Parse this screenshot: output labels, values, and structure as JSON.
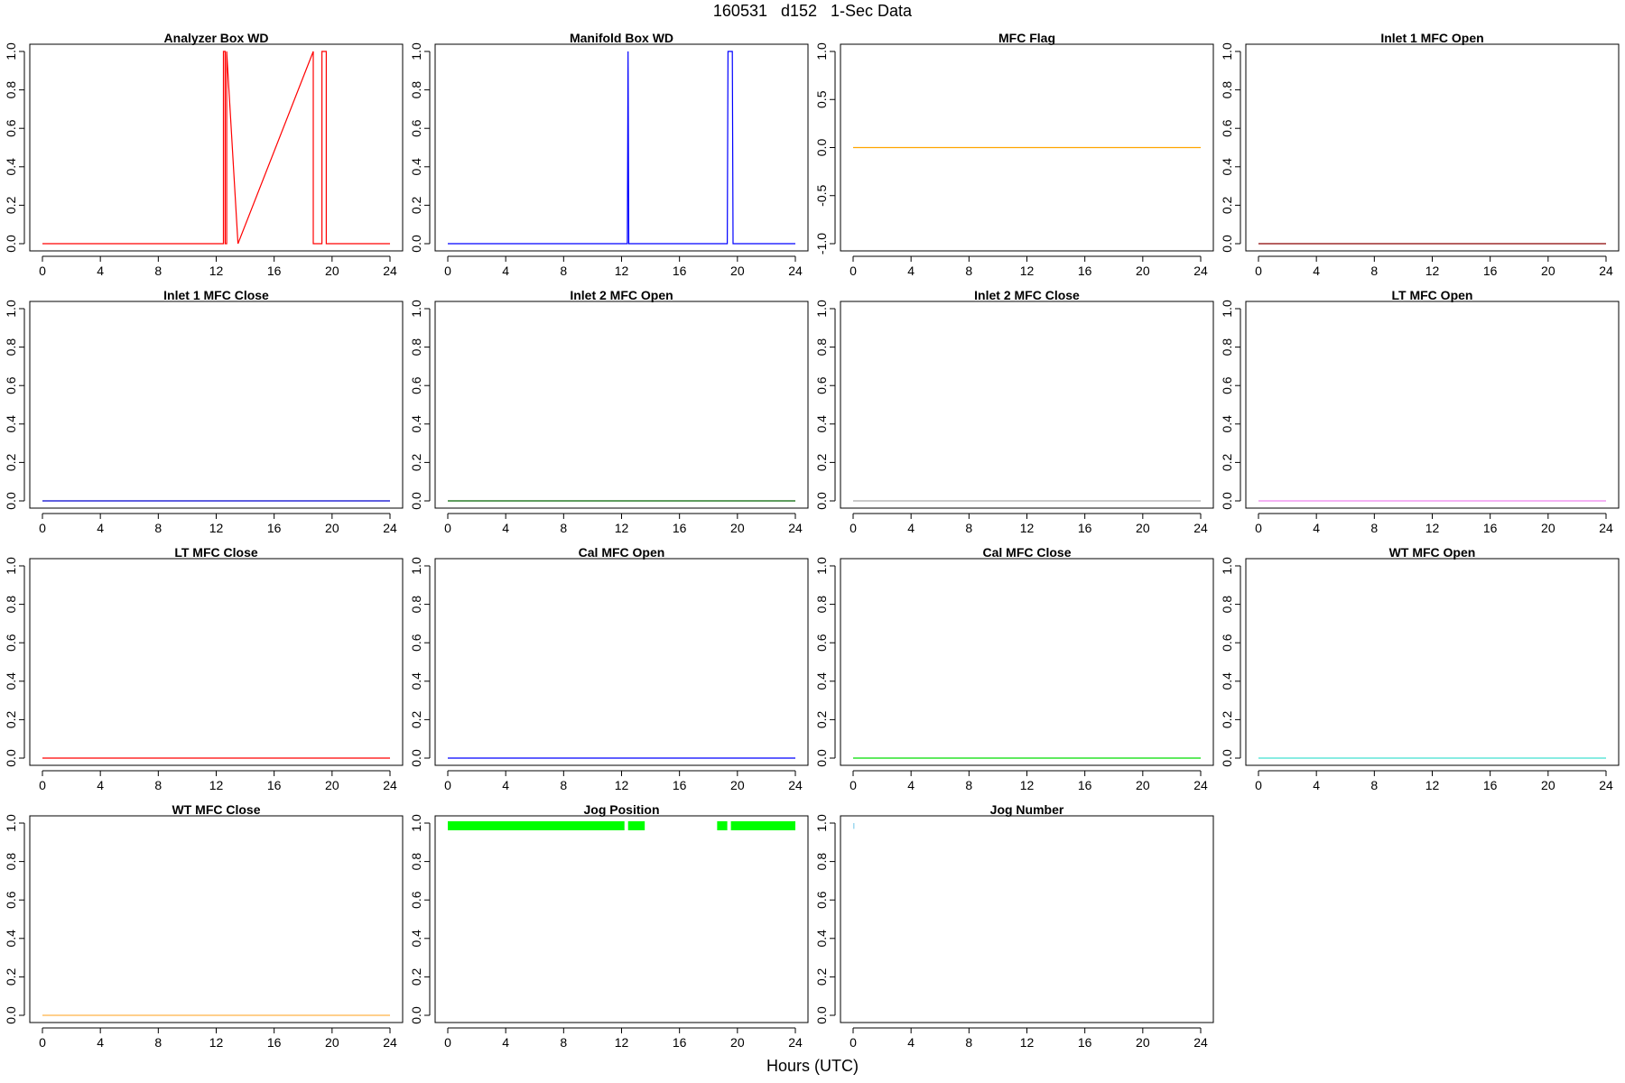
{
  "title": "160531   d152   1-Sec Data",
  "xlabel": "Hours (UTC)",
  "chart_data": [
    {
      "type": "line",
      "title": "Analyzer Box WD",
      "xlim": [
        0,
        24
      ],
      "ylim": [
        0,
        1
      ],
      "x_ticks": [
        "0",
        "4",
        "8",
        "12",
        "16",
        "20",
        "24"
      ],
      "y_ticks": [
        "0.0",
        "0.2",
        "0.4",
        "0.6",
        "0.8",
        "1.0"
      ],
      "color": "#ff0000",
      "series": [
        {
          "x": [
            0,
            12.5,
            12.5,
            12.62,
            12.62,
            12.72,
            12.72,
            13.5,
            18.7,
            18.7,
            19.3,
            19.3,
            19.6,
            19.6,
            24
          ],
          "y": [
            0,
            0,
            1,
            1,
            0,
            0,
            1,
            0,
            1,
            0,
            0,
            1,
            1,
            0,
            0
          ]
        }
      ]
    },
    {
      "type": "line",
      "title": "Manifold Box WD",
      "xlim": [
        0,
        24
      ],
      "ylim": [
        0,
        1
      ],
      "x_ticks": [
        "0",
        "4",
        "8",
        "12",
        "16",
        "20",
        "24"
      ],
      "y_ticks": [
        "0.0",
        "0.2",
        "0.4",
        "0.6",
        "0.8",
        "1.0"
      ],
      "color": "#0000ff",
      "series": [
        {
          "x": [
            0,
            12.4,
            12.45,
            12.5,
            19.3,
            19.35,
            19.65,
            19.7,
            24
          ],
          "y": [
            0,
            0,
            1,
            0,
            0,
            1,
            1,
            0,
            0
          ]
        }
      ]
    },
    {
      "type": "line",
      "title": "MFC Flag",
      "xlim": [
        0,
        24
      ],
      "ylim": [
        -1,
        1
      ],
      "x_ticks": [
        "0",
        "4",
        "8",
        "12",
        "16",
        "20",
        "24"
      ],
      "y_ticks": [
        "-1.0",
        "-0.5",
        "0.0",
        "0.5",
        "1.0"
      ],
      "color": "#ffa500",
      "series": [
        {
          "x": [
            0,
            24
          ],
          "y": [
            0,
            0
          ]
        }
      ]
    },
    {
      "type": "line",
      "title": "Inlet 1 MFC Open",
      "xlim": [
        0,
        24
      ],
      "ylim": [
        0,
        1
      ],
      "x_ticks": [
        "0",
        "4",
        "8",
        "12",
        "16",
        "20",
        "24"
      ],
      "y_ticks": [
        "0.0",
        "0.2",
        "0.4",
        "0.6",
        "0.8",
        "1.0"
      ],
      "color": "#8b0000",
      "series": [
        {
          "x": [
            0,
            24
          ],
          "y": [
            0,
            0
          ]
        }
      ]
    },
    {
      "type": "line",
      "title": "Inlet 1 MFC Close",
      "xlim": [
        0,
        24
      ],
      "ylim": [
        0,
        1
      ],
      "x_ticks": [
        "0",
        "4",
        "8",
        "12",
        "16",
        "20",
        "24"
      ],
      "y_ticks": [
        "0.0",
        "0.2",
        "0.4",
        "0.6",
        "0.8",
        "1.0"
      ],
      "color": "#0000cd",
      "series": [
        {
          "x": [
            0,
            24
          ],
          "y": [
            0,
            0
          ]
        }
      ]
    },
    {
      "type": "line",
      "title": "Inlet 2 MFC Open",
      "xlim": [
        0,
        24
      ],
      "ylim": [
        0,
        1
      ],
      "x_ticks": [
        "0",
        "4",
        "8",
        "12",
        "16",
        "20",
        "24"
      ],
      "y_ticks": [
        "0.0",
        "0.2",
        "0.4",
        "0.6",
        "0.8",
        "1.0"
      ],
      "color": "#006400",
      "series": [
        {
          "x": [
            0,
            24
          ],
          "y": [
            0,
            0
          ]
        }
      ]
    },
    {
      "type": "line",
      "title": "Inlet 2 MFC Close",
      "xlim": [
        0,
        24
      ],
      "ylim": [
        0,
        1
      ],
      "x_ticks": [
        "0",
        "4",
        "8",
        "12",
        "16",
        "20",
        "24"
      ],
      "y_ticks": [
        "0.0",
        "0.2",
        "0.4",
        "0.6",
        "0.8",
        "1.0"
      ],
      "color": "#a9a9a9",
      "series": [
        {
          "x": [
            0,
            24
          ],
          "y": [
            0,
            0
          ]
        }
      ]
    },
    {
      "type": "line",
      "title": "LT MFC Open",
      "xlim": [
        0,
        24
      ],
      "ylim": [
        0,
        1
      ],
      "x_ticks": [
        "0",
        "4",
        "8",
        "12",
        "16",
        "20",
        "24"
      ],
      "y_ticks": [
        "0.0",
        "0.2",
        "0.4",
        "0.6",
        "0.8",
        "1.0"
      ],
      "color": "#ee82ee",
      "series": [
        {
          "x": [
            0,
            24
          ],
          "y": [
            0,
            0
          ]
        }
      ]
    },
    {
      "type": "line",
      "title": "LT MFC Close",
      "xlim": [
        0,
        24
      ],
      "ylim": [
        0,
        1
      ],
      "x_ticks": [
        "0",
        "4",
        "8",
        "12",
        "16",
        "20",
        "24"
      ],
      "y_ticks": [
        "0.0",
        "0.2",
        "0.4",
        "0.6",
        "0.8",
        "1.0"
      ],
      "color": "#ff0000",
      "series": [
        {
          "x": [
            0,
            24
          ],
          "y": [
            0,
            0
          ]
        }
      ]
    },
    {
      "type": "line",
      "title": "Cal MFC Open",
      "xlim": [
        0,
        24
      ],
      "ylim": [
        0,
        1
      ],
      "x_ticks": [
        "0",
        "4",
        "8",
        "12",
        "16",
        "20",
        "24"
      ],
      "y_ticks": [
        "0.0",
        "0.2",
        "0.4",
        "0.6",
        "0.8",
        "1.0"
      ],
      "color": "#0000ff",
      "series": [
        {
          "x": [
            0,
            24
          ],
          "y": [
            0,
            0
          ]
        }
      ]
    },
    {
      "type": "line",
      "title": "Cal MFC Close",
      "xlim": [
        0,
        24
      ],
      "ylim": [
        0,
        1
      ],
      "x_ticks": [
        "0",
        "4",
        "8",
        "12",
        "16",
        "20",
        "24"
      ],
      "y_ticks": [
        "0.0",
        "0.2",
        "0.4",
        "0.6",
        "0.8",
        "1.0"
      ],
      "color": "#00dd00",
      "series": [
        {
          "x": [
            0,
            24
          ],
          "y": [
            0,
            0
          ]
        }
      ]
    },
    {
      "type": "line",
      "title": "WT MFC Open",
      "xlim": [
        0,
        24
      ],
      "ylim": [
        0,
        1
      ],
      "x_ticks": [
        "0",
        "4",
        "8",
        "12",
        "16",
        "20",
        "24"
      ],
      "y_ticks": [
        "0.0",
        "0.2",
        "0.4",
        "0.6",
        "0.8",
        "1.0"
      ],
      "color": "#40e0d0",
      "series": [
        {
          "x": [
            0,
            24
          ],
          "y": [
            0,
            0
          ]
        }
      ]
    },
    {
      "type": "line",
      "title": "WT MFC Close",
      "xlim": [
        0,
        24
      ],
      "ylim": [
        0,
        1
      ],
      "x_ticks": [
        "0",
        "4",
        "8",
        "12",
        "16",
        "20",
        "24"
      ],
      "y_ticks": [
        "0.0",
        "0.2",
        "0.4",
        "0.6",
        "0.8",
        "1.0"
      ],
      "color": "#ffb347",
      "series": [
        {
          "x": [
            0,
            24
          ],
          "y": [
            0,
            0
          ]
        }
      ]
    },
    {
      "type": "bar",
      "title": "Jog Position",
      "xlim": [
        0,
        24
      ],
      "ylim": [
        0,
        1
      ],
      "x_ticks": [
        "0",
        "4",
        "8",
        "12",
        "16",
        "20",
        "24"
      ],
      "y_ticks": [
        "0.0",
        "0.2",
        "0.4",
        "0.6",
        "0.8",
        "1.0"
      ],
      "color": "#00ff00",
      "band_value": 1,
      "segments": [
        [
          0,
          12.2
        ],
        [
          12.45,
          13.6
        ],
        [
          18.6,
          19.3
        ],
        [
          19.55,
          24
        ]
      ]
    },
    {
      "type": "line",
      "title": "Jog Number",
      "xlim": [
        0,
        24
      ],
      "ylim": [
        0,
        1
      ],
      "x_ticks": [
        "0",
        "4",
        "8",
        "12",
        "16",
        "20",
        "24"
      ],
      "y_ticks": [
        "0.0",
        "0.2",
        "0.4",
        "0.6",
        "0.8",
        "1.0"
      ],
      "color": "#87ceeb",
      "series": [
        {
          "x": [
            0.05,
            0.05
          ],
          "y": [
            0.97,
            1.0
          ]
        }
      ]
    }
  ]
}
